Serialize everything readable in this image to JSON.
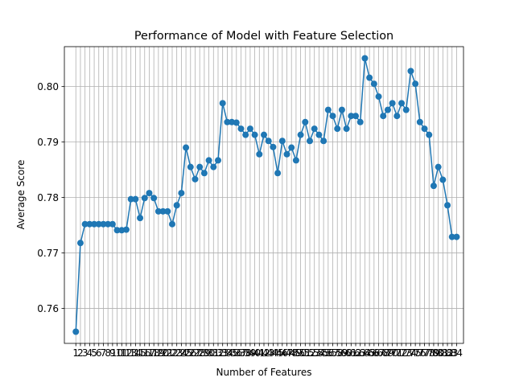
{
  "chart_data": {
    "type": "line",
    "title": "Performance of Model with Feature Selection",
    "xlabel": "Number of Features",
    "ylabel": "Average Score",
    "grid": true,
    "marker": "circle",
    "color": "#1f77b4",
    "xlim": [
      -1.5,
      85.5
    ],
    "ylim": [
      0.7537,
      0.8072
    ],
    "yticks": [
      0.76,
      0.77,
      0.78,
      0.79,
      0.8
    ],
    "ytick_labels": [
      "0.76",
      "0.77",
      "0.78",
      "0.79",
      "0.80"
    ],
    "x": [
      1,
      2,
      3,
      4,
      5,
      6,
      7,
      8,
      9,
      10,
      11,
      12,
      13,
      14,
      15,
      16,
      17,
      18,
      19,
      20,
      21,
      22,
      23,
      24,
      25,
      26,
      27,
      28,
      29,
      30,
      31,
      32,
      33,
      34,
      35,
      36,
      37,
      38,
      39,
      40,
      41,
      42,
      43,
      44,
      45,
      46,
      47,
      48,
      49,
      50,
      51,
      52,
      53,
      54,
      55,
      56,
      57,
      58,
      59,
      60,
      61,
      62,
      63,
      64,
      65,
      66,
      67,
      68,
      69,
      70,
      71,
      72,
      73,
      74,
      75,
      76,
      77,
      78,
      79,
      80,
      81,
      82,
      83,
      84
    ],
    "values": [
      0.7558,
      0.7718,
      0.7752,
      0.7752,
      0.7752,
      0.7752,
      0.7752,
      0.7752,
      0.7752,
      0.7741,
      0.7741,
      0.7742,
      0.7797,
      0.7797,
      0.7763,
      0.7799,
      0.7808,
      0.7799,
      0.7775,
      0.7775,
      0.7775,
      0.7752,
      0.7786,
      0.7808,
      0.789,
      0.7855,
      0.7833,
      0.7855,
      0.7844,
      0.7867,
      0.7855,
      0.7867,
      0.797,
      0.7936,
      0.7936,
      0.7935,
      0.7924,
      0.7913,
      0.7924,
      0.7913,
      0.7878,
      0.7913,
      0.7902,
      0.7891,
      0.7844,
      0.7902,
      0.7878,
      0.789,
      0.7867,
      0.7913,
      0.7936,
      0.7902,
      0.7924,
      0.7913,
      0.7902,
      0.7958,
      0.7947,
      0.7924,
      0.7958,
      0.7924,
      0.7947,
      0.7947,
      0.7936,
      0.8051,
      0.8016,
      0.8005,
      0.7982,
      0.7947,
      0.7958,
      0.797,
      0.7947,
      0.797,
      0.7958,
      0.8028,
      0.8005,
      0.7936,
      0.7924,
      0.7913,
      0.7821,
      0.7855,
      0.7832,
      0.7786,
      0.7729,
      0.7729
    ]
  }
}
